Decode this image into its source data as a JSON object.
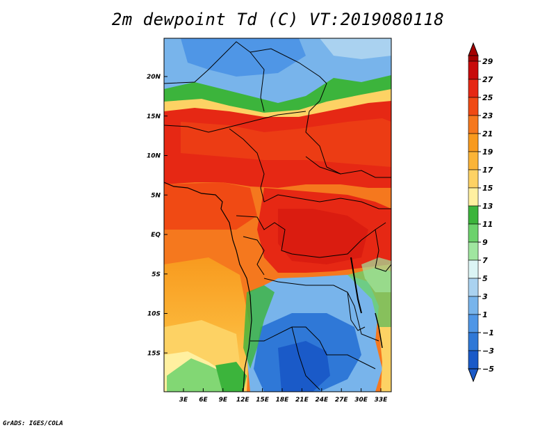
{
  "title": "2m dewpoint Td (C) VT:2019080118",
  "footer": "GrADS: IGES/COLA",
  "map": {
    "lat_ticks": [
      "20N",
      "15N",
      "10N",
      "5N",
      "EQ",
      "5S",
      "10S",
      "15S"
    ],
    "lon_ticks": [
      "3E",
      "6E",
      "9E",
      "12E",
      "15E",
      "18E",
      "21E",
      "24E",
      "27E",
      "30E",
      "33E"
    ]
  },
  "colorbar": {
    "labels": [
      "29",
      "27",
      "25",
      "23",
      "21",
      "19",
      "17",
      "15",
      "13",
      "11",
      "9",
      "7",
      "5",
      "3",
      "1",
      "−1",
      "−3",
      "−5"
    ],
    "colors": [
      "#a50000",
      "#c80a0a",
      "#e62814",
      "#f04a14",
      "#f5781e",
      "#f89a1e",
      "#fbb437",
      "#fdd264",
      "#fff0a0",
      "#3cb43c",
      "#6cd26c",
      "#a0e6a0",
      "#dcf5f5",
      "#aad2f0",
      "#78b4eb",
      "#4f96e6",
      "#2f78d7",
      "#1a5ac8"
    ]
  }
}
